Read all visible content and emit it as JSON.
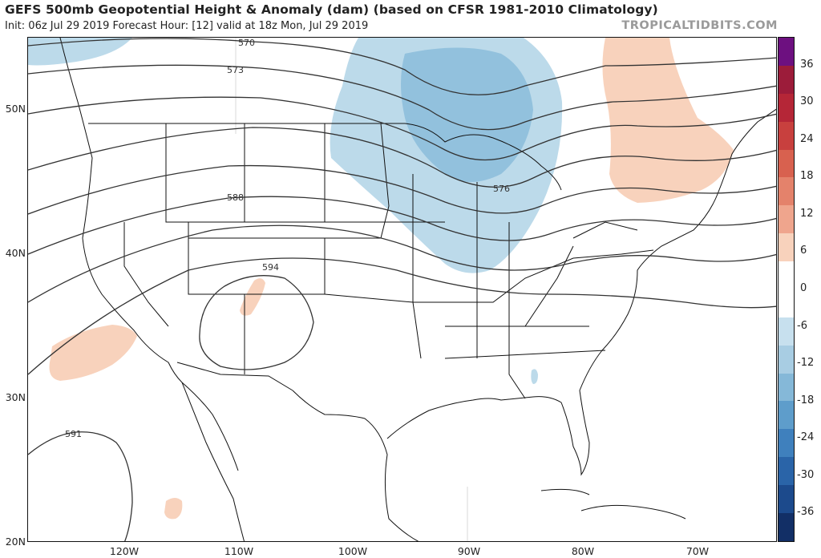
{
  "header": {
    "title": "GEFS 500mb Geopotential Height & Anomaly (dam) (based on CFSR 1981-2010 Climatology)",
    "subtitle": "Init: 06z Jul 29 2019   Forecast Hour: [12]   valid at 18z Mon, Jul 29 2019",
    "brand": "TROPICALTIDBITS.COM"
  },
  "map": {
    "lat_labels": [
      "50N",
      "40N",
      "30N",
      "20N"
    ],
    "lon_labels": [
      "120W",
      "110W",
      "100W",
      "90W",
      "80W",
      "70W"
    ],
    "contour_labels": [
      "570",
      "573",
      "576",
      "588",
      "594",
      "591"
    ],
    "colors": {
      "positive_anomaly": "#f8d2bc",
      "negative_light": "#bcdaea",
      "negative_medium": "#92c1dd",
      "contour": "#333333",
      "border": "#111111"
    }
  },
  "colorbar": {
    "ticks": [
      "36",
      "30",
      "24",
      "18",
      "12",
      "6",
      "0",
      "-6",
      "-12",
      "-18",
      "-24",
      "-30",
      "-36"
    ],
    "colors": [
      "#6d1080",
      "#9c1c3a",
      "#b52637",
      "#c8403e",
      "#d8614f",
      "#e4826b",
      "#efa58d",
      "#f8d2bc",
      "#ffffff",
      "#ffffff",
      "#c7e0ee",
      "#a8cde3",
      "#85b8d8",
      "#5e9dcb",
      "#3f80bd",
      "#2a64a8",
      "#1c4a8c",
      "#122f66"
    ]
  }
}
